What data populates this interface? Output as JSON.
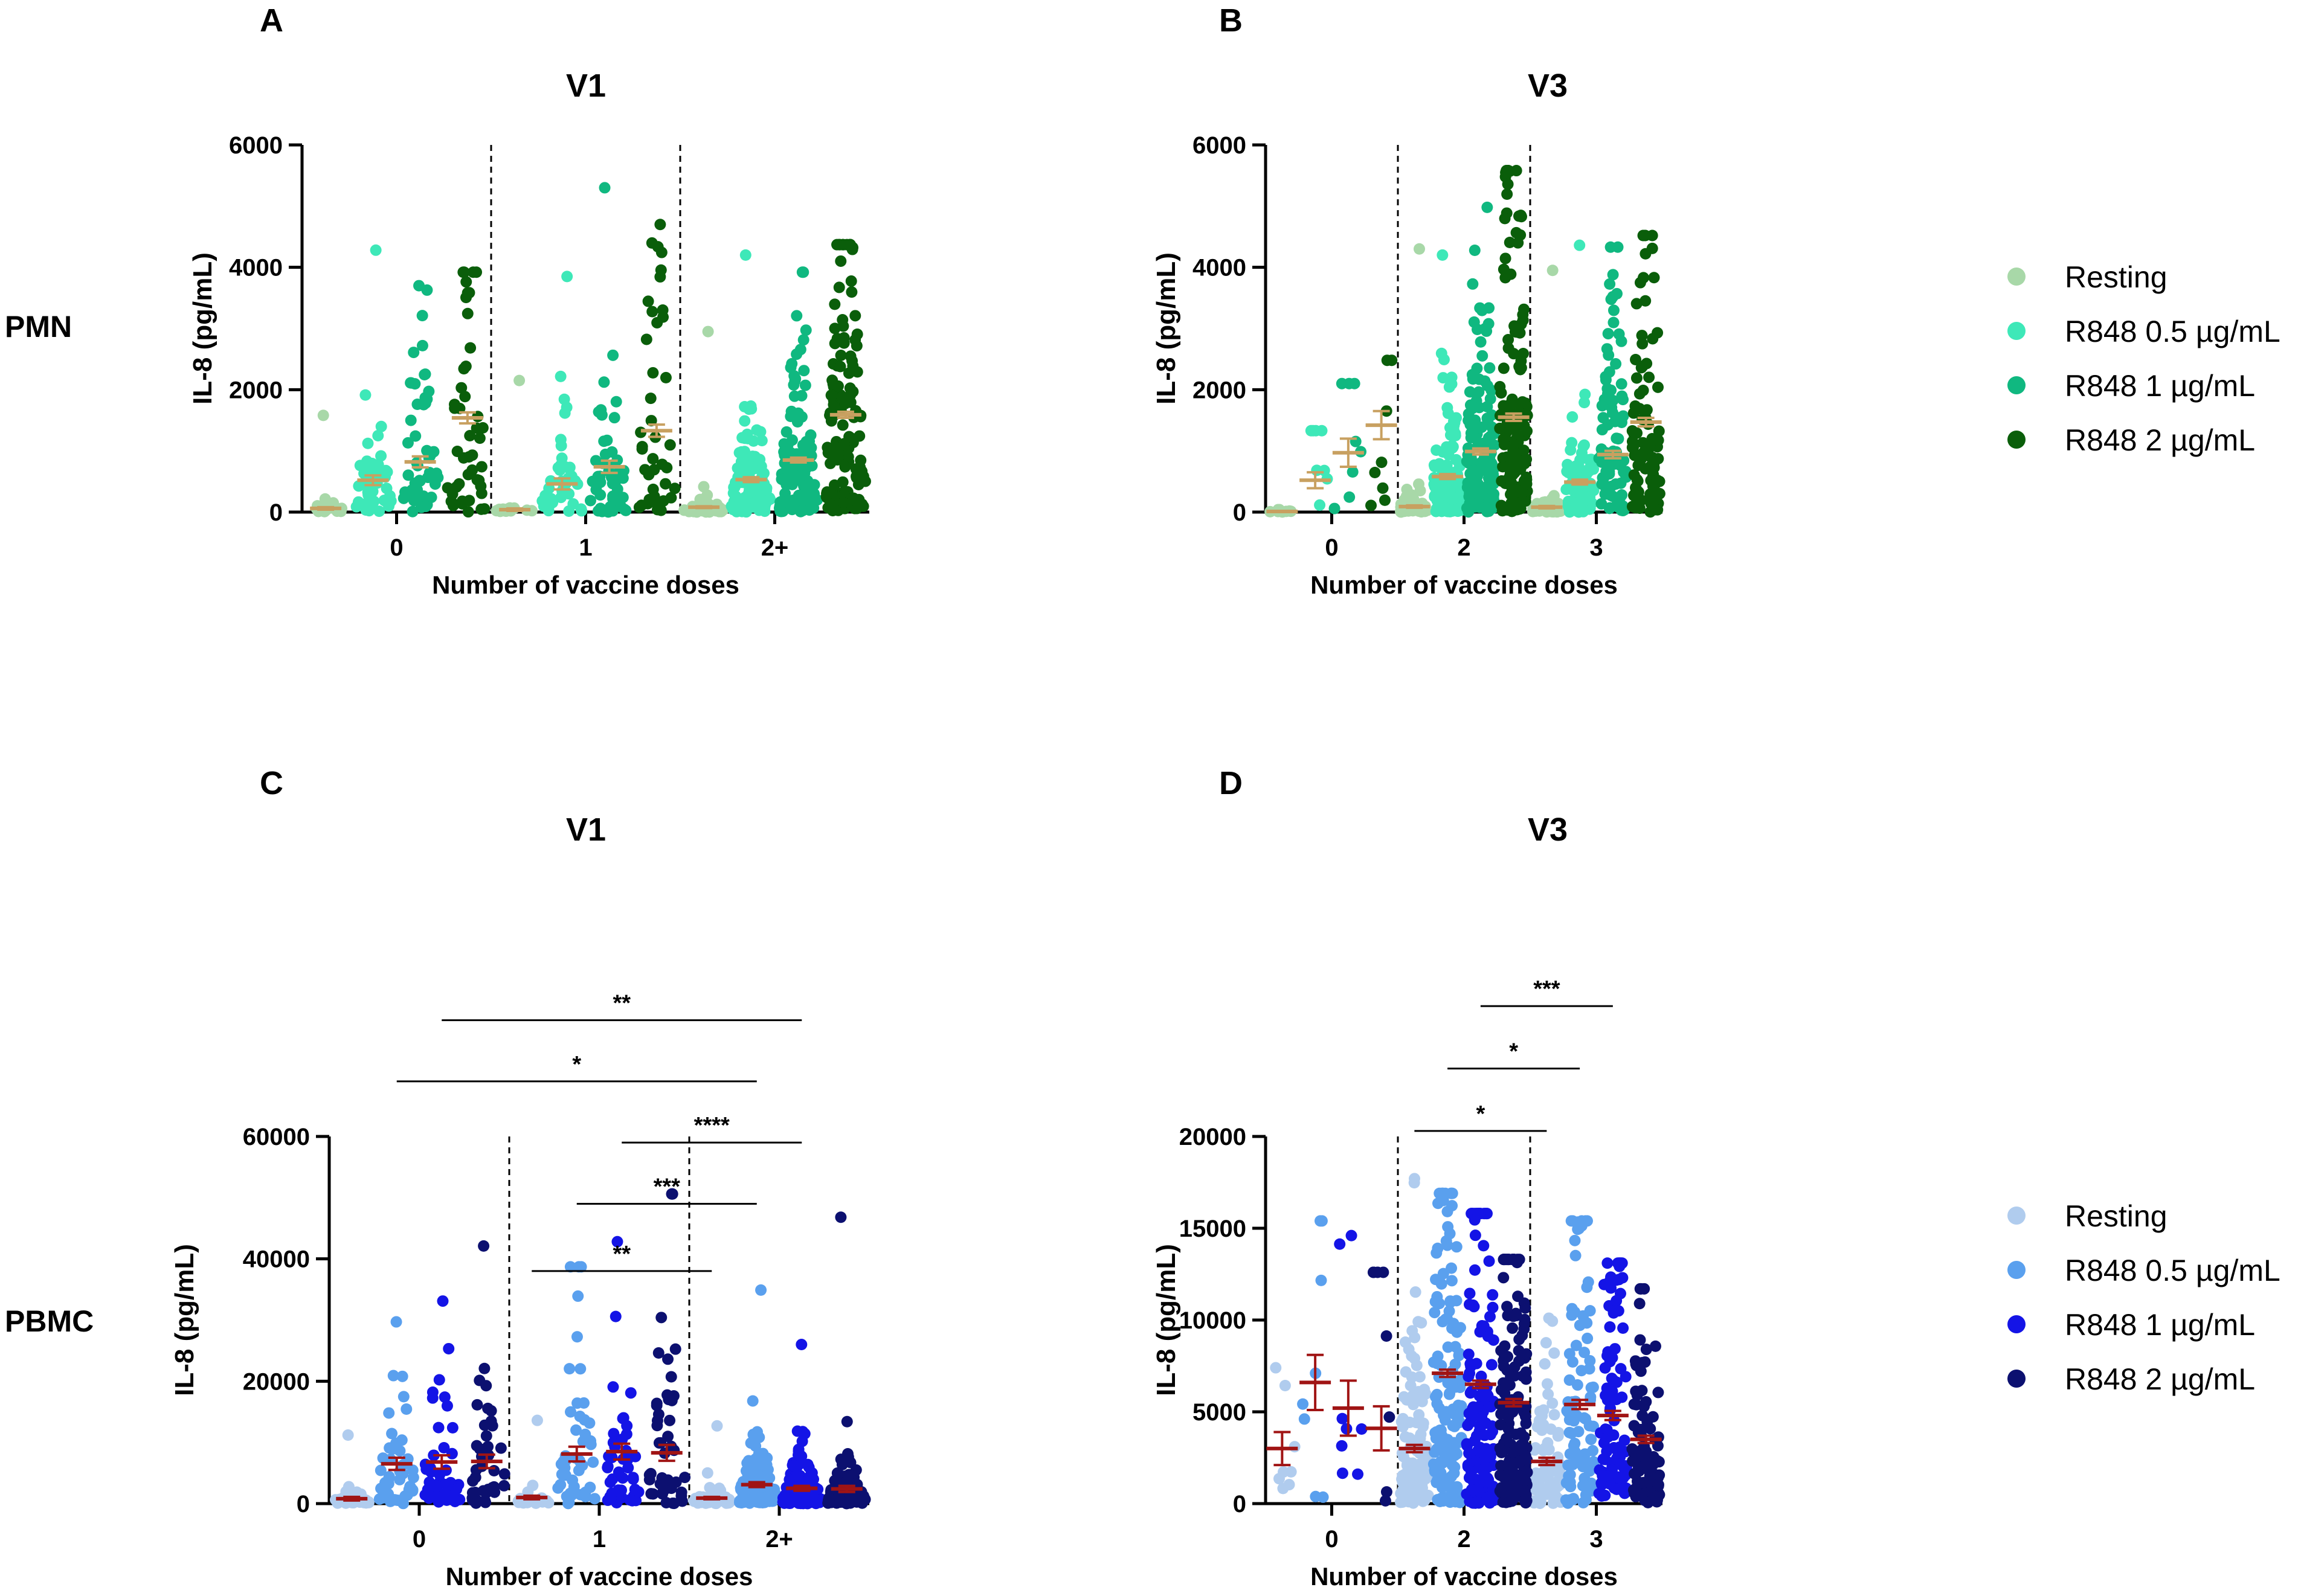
{
  "figure": {
    "row_labels": [
      "PMN",
      "PBMC"
    ],
    "palettes": {
      "pmn": [
        "#a8d8a8",
        "#3ee8b8",
        "#10b880",
        "#0a5e0a"
      ],
      "pbmc": [
        "#b0ccee",
        "#5aa0ee",
        "#1414e6",
        "#0c1070"
      ]
    },
    "mean_colors": {
      "pmn": "#c8a060",
      "pbmc": "#a01414"
    }
  },
  "chart_data": [
    {
      "id": "A",
      "type": "scatter",
      "subtype": "dot-plot with mean ± SEM",
      "panel_letter": "A",
      "title": "V1",
      "xlabel": "Number of vaccine doses",
      "ylabel": "IL-8 (pg/mL)",
      "ylim": [
        0,
        6000
      ],
      "yticks": [
        0,
        2000,
        4000,
        6000
      ],
      "ytick_labels": [
        "0",
        "2000",
        "4000",
        "6000"
      ],
      "categories": [
        "0",
        "1",
        "2+"
      ],
      "legend": [
        "Resting",
        "R848 0.5 µg/mL",
        "R848 1 µg/mL",
        "R848 2 µg/mL"
      ],
      "series": [
        {
          "name": "Resting",
          "means": [
            60,
            40,
            80
          ],
          "sem": [
            20,
            20,
            15
          ],
          "max": [
            1580,
            2150,
            2950
          ],
          "n": [
            20,
            15,
            55
          ]
        },
        {
          "name": "R848 0.5 µg/mL",
          "means": [
            520,
            460,
            530
          ],
          "sem": [
            80,
            90,
            40
          ],
          "max": [
            4280,
            3850,
            4200
          ],
          "n": [
            45,
            40,
            110
          ]
        },
        {
          "name": "R848 1 µg/mL",
          "means": [
            820,
            740,
            850
          ],
          "sem": [
            90,
            100,
            40
          ],
          "max": [
            3700,
            5300,
            3920
          ],
          "n": [
            50,
            45,
            120
          ]
        },
        {
          "name": "R848 2 µg/mL",
          "means": [
            1540,
            1330,
            1590
          ],
          "sem": [
            90,
            100,
            50
          ],
          "max": [
            3920,
            4700,
            4370
          ],
          "n": [
            45,
            40,
            130
          ]
        }
      ],
      "significance": []
    },
    {
      "id": "B",
      "type": "scatter",
      "subtype": "dot-plot with mean ± SEM",
      "panel_letter": "B",
      "title": "V3",
      "xlabel": "Number of vaccine doses",
      "ylabel": "IL-8 (pg/mL)",
      "ylim": [
        0,
        6000
      ],
      "yticks": [
        0,
        2000,
        4000,
        6000
      ],
      "ytick_labels": [
        "0",
        "2000",
        "4000",
        "6000"
      ],
      "categories": [
        "0",
        "2",
        "3"
      ],
      "legend": [
        "Resting",
        "R848 0.5 µg/mL",
        "R848 1 µg/mL",
        "R848 2 µg/mL"
      ],
      "series": [
        {
          "name": "Resting",
          "means": [
            10,
            90,
            80
          ],
          "sem": [
            5,
            20,
            20
          ],
          "max": [
            40,
            4300,
            3950
          ],
          "n": [
            8,
            70,
            45
          ]
        },
        {
          "name": "R848 0.5 µg/mL",
          "means": [
            520,
            580,
            490
          ],
          "sem": [
            130,
            40,
            40
          ],
          "max": [
            1330,
            4200,
            4360
          ],
          "n": [
            8,
            130,
            80
          ]
        },
        {
          "name": "R848 1 µg/mL",
          "means": [
            970,
            990,
            940
          ],
          "sem": [
            230,
            50,
            60
          ],
          "max": [
            2100,
            4980,
            4330
          ],
          "n": [
            8,
            140,
            90
          ]
        },
        {
          "name": "R848 2 µg/mL",
          "means": [
            1420,
            1550,
            1470
          ],
          "sem": [
            230,
            60,
            70
          ],
          "max": [
            2480,
            5580,
            4520
          ],
          "n": [
            8,
            150,
            95
          ]
        }
      ],
      "significance": []
    },
    {
      "id": "C",
      "type": "scatter",
      "subtype": "dot-plot with mean ± SEM",
      "panel_letter": "C",
      "title": "V1",
      "xlabel": "Number of vaccine doses",
      "ylabel": "IL-8 (pg/mL)",
      "ylim": [
        0,
        60000
      ],
      "yticks": [
        0,
        20000,
        40000,
        60000
      ],
      "ytick_labels": [
        "0",
        "20000",
        "40000",
        "60000"
      ],
      "categories": [
        "0",
        "1",
        "2+"
      ],
      "legend": [
        "Resting",
        "R848 0.5 µg/mL",
        "R848 1 µg/mL",
        "R848 2 µg/mL"
      ],
      "series": [
        {
          "name": "Resting",
          "means": [
            800,
            1000,
            900
          ],
          "sem": [
            300,
            300,
            200
          ],
          "max": [
            11200,
            13600,
            12700
          ],
          "n": [
            25,
            20,
            55
          ]
        },
        {
          "name": "R848 0.5 µg/mL",
          "means": [
            6500,
            8100,
            3100
          ],
          "sem": [
            1000,
            1200,
            400
          ],
          "max": [
            29700,
            38700,
            34900
          ],
          "n": [
            45,
            45,
            110
          ]
        },
        {
          "name": "R848 1 µg/mL",
          "means": [
            6800,
            8500,
            2500
          ],
          "sem": [
            1100,
            1300,
            400
          ],
          "max": [
            33100,
            42800,
            26000
          ],
          "n": [
            45,
            45,
            110
          ]
        },
        {
          "name": "R848 2 µg/mL",
          "means": [
            6900,
            8300,
            2400
          ],
          "sem": [
            1100,
            1300,
            500
          ],
          "max": [
            42100,
            50600,
            46800
          ],
          "n": [
            40,
            45,
            110
          ]
        }
      ],
      "significance": [
        {
          "from": [
            1,
            0
          ],
          "to": [
            2,
            0
          ],
          "label": "**",
          "y": 38000
        },
        {
          "from": [
            1,
            1
          ],
          "to": [
            2,
            1
          ],
          "label": "***",
          "y": 49000
        },
        {
          "from": [
            1,
            2
          ],
          "to": [
            2,
            2
          ],
          "label": "****",
          "y": 59000
        },
        {
          "from": [
            0,
            1
          ],
          "to": [
            2,
            1
          ],
          "label": "*",
          "y": 69000
        },
        {
          "from": [
            0,
            2
          ],
          "to": [
            2,
            2
          ],
          "label": "**",
          "y": 79000
        }
      ]
    },
    {
      "id": "D",
      "type": "scatter",
      "subtype": "dot-plot with mean ± SEM",
      "panel_letter": "D",
      "title": "V3",
      "xlabel": "Number of vaccine doses",
      "ylabel": "IL-8 (pg/mL)",
      "ylim": [
        0,
        20000
      ],
      "yticks": [
        0,
        5000,
        10000,
        15000,
        20000
      ],
      "ytick_labels": [
        "0",
        "5000",
        "10000",
        "15000",
        "20000"
      ],
      "categories": [
        "0",
        "2",
        "3"
      ],
      "legend": [
        "Resting",
        "R848 0.5 µg/mL",
        "R848 1 µg/mL",
        "R848 2 µg/mL"
      ],
      "series": [
        {
          "name": "Resting",
          "means": [
            3000,
            3000,
            2300
          ],
          "sem": [
            900,
            200,
            200
          ],
          "max": [
            7400,
            17700,
            10100
          ],
          "n": [
            8,
            120,
            80
          ]
        },
        {
          "name": "R848 0.5 µg/mL",
          "means": [
            6600,
            7100,
            5400
          ],
          "sem": [
            1500,
            200,
            250
          ],
          "max": [
            15400,
            16900,
            15400
          ],
          "n": [
            8,
            140,
            90
          ]
        },
        {
          "name": "R848 1 µg/mL",
          "means": [
            5200,
            6500,
            4800
          ],
          "sem": [
            1500,
            200,
            250
          ],
          "max": [
            14600,
            15800,
            13100
          ],
          "n": [
            8,
            150,
            95
          ]
        },
        {
          "name": "R848 2 µg/mL",
          "means": [
            4100,
            5500,
            3500
          ],
          "sem": [
            1200,
            200,
            200
          ],
          "max": [
            12600,
            13300,
            11700
          ],
          "n": [
            8,
            150,
            95
          ]
        }
      ],
      "significance": [
        {
          "from": [
            1,
            0
          ],
          "to": [
            2,
            0
          ],
          "label": "*",
          "y": 20300
        },
        {
          "from": [
            1,
            1
          ],
          "to": [
            2,
            1
          ],
          "label": "*",
          "y": 23700
        },
        {
          "from": [
            1,
            2
          ],
          "to": [
            2,
            2
          ],
          "label": "***",
          "y": 27100
        }
      ]
    }
  ]
}
